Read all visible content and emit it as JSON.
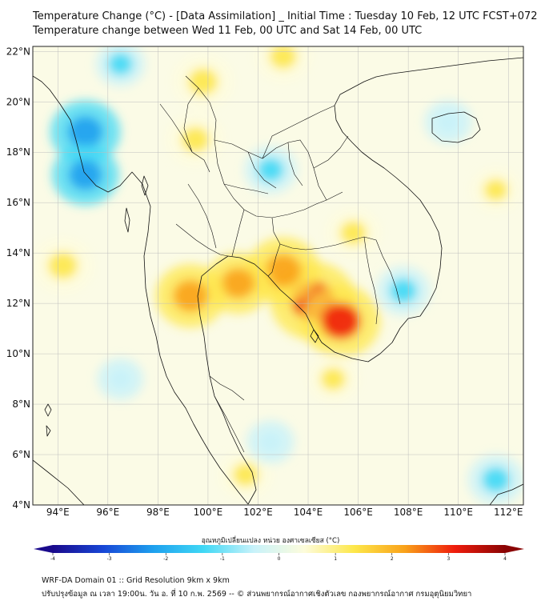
{
  "title_line1": "Temperature Change (°C) - [Data Assimilation] _ Initial Time : Tuesday 10 Feb, 12 UTC FCST+072",
  "title_line2": "Temperature change between Wed 11 Feb, 00 UTC and Sat 14 Feb, 00 UTC",
  "lat_labels": [
    "22°N",
    "20°N",
    "18°N",
    "16°N",
    "14°N",
    "12°N",
    "10°N",
    "8°N",
    "6°N",
    "4°N"
  ],
  "lon_labels": [
    "94°E",
    "96°E",
    "98°E",
    "100°E",
    "102°E",
    "104°E",
    "106°E",
    "108°E",
    "110°E",
    "112°E"
  ],
  "extent": {
    "lon_min": 93.0,
    "lon_max": 112.6,
    "lat_min": 4.0,
    "lat_max": 22.2
  },
  "colorbar_label": "อุณหภูมิเปลี่ยนแปลง หน่วย องศาเซลเซียส (°C)",
  "colorbar_ticks": [
    "-4",
    "-3",
    "-2",
    "-1",
    "0",
    "1",
    "2",
    "3",
    "4"
  ],
  "colorbar_range": [
    -4,
    4
  ],
  "colorbar_colors": [
    "#1a0a8c",
    "#1846d6",
    "#1ea0ee",
    "#40d8f5",
    "#c8f2fa",
    "#fdfcdc",
    "#fde74a",
    "#f9a21a",
    "#ef1c0c",
    "#8a0404"
  ],
  "footer_line1": "WRF-DA Domain 01 :: Grid Resolution 9km x 9km",
  "footer_line2": "ปรับปรุงข้อมูล ณ เวลา 19:00น. วัน อ. ที่ 10 ก.พ. 2569 -- © ส่วนพยากรณ์อากาศเชิงตัวเลข กองพยากรณ์อากาศ กรมอุตุนิยมวิทยา",
  "field_anomalies": [
    {
      "name": "warm-cambodia-core",
      "lon": 104.2,
      "lat": 12.1,
      "value": 3.2
    },
    {
      "name": "warm-cambodia-east",
      "lon": 105.3,
      "lat": 11.3,
      "value": 2.8
    },
    {
      "name": "warm-tonle-sap",
      "lon": 103.0,
      "lat": 13.3,
      "value": 2.4
    },
    {
      "name": "warm-gulf-thailand-north",
      "lon": 101.2,
      "lat": 12.8,
      "value": 2.0
    },
    {
      "name": "warm-central-thailand",
      "lon": 99.3,
      "lat": 12.3,
      "value": 2.2
    },
    {
      "name": "warm-northern-thailand",
      "lon": 99.5,
      "lat": 18.5,
      "value": 1.4
    },
    {
      "name": "warm-north-border",
      "lon": 99.8,
      "lat": 20.8,
      "value": 1.6
    },
    {
      "name": "warm-west-sea",
      "lon": 94.2,
      "lat": 13.5,
      "value": 1.6
    },
    {
      "name": "warm-laos-south",
      "lon": 105.8,
      "lat": 14.8,
      "value": 1.2
    },
    {
      "name": "warm-south-sea",
      "lon": 105.0,
      "lat": 9.0,
      "value": 1.0
    },
    {
      "name": "warm-top-center",
      "lon": 103.0,
      "lat": 21.8,
      "value": 1.3
    },
    {
      "name": "warm-malaysia",
      "lon": 101.5,
      "lat": 5.2,
      "value": 1.1
    },
    {
      "name": "warm-scs-east",
      "lon": 111.5,
      "lat": 16.5,
      "value": 0.9
    },
    {
      "name": "cold-myanmar-coast-north",
      "lon": 95.1,
      "lat": 18.8,
      "value": -2.2
    },
    {
      "name": "cold-myanmar-coast-south",
      "lon": 95.1,
      "lat": 17.1,
      "value": -2.0
    },
    {
      "name": "cold-northeast-thailand",
      "lon": 102.5,
      "lat": 17.3,
      "value": -1.1
    },
    {
      "name": "cold-vietnam-coast",
      "lon": 107.8,
      "lat": 12.5,
      "value": -1.2
    },
    {
      "name": "cold-gulf-south",
      "lon": 102.5,
      "lat": 6.5,
      "value": -0.8
    },
    {
      "name": "cold-far-southeast",
      "lon": 111.5,
      "lat": 5.0,
      "value": -1.3
    },
    {
      "name": "cold-andaman",
      "lon": 96.5,
      "lat": 9.0,
      "value": -0.7
    },
    {
      "name": "cold-top-left",
      "lon": 96.5,
      "lat": 21.5,
      "value": -0.9
    },
    {
      "name": "cold-hainan",
      "lon": 109.6,
      "lat": 19.2,
      "value": -0.8
    }
  ]
}
